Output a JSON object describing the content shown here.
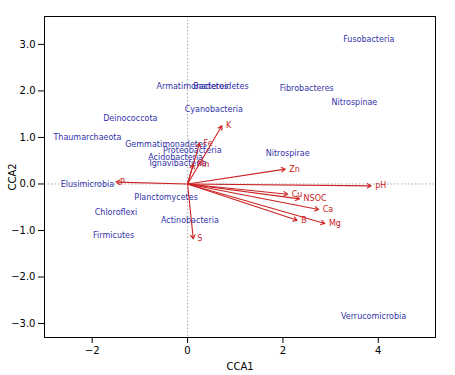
{
  "chart_data": {
    "type": "biplot",
    "xlabel": "CCA1",
    "ylabel": "CCA2",
    "xlim": [
      -3.0,
      5.2
    ],
    "ylim": [
      -3.3,
      3.6
    ],
    "xticks": [
      -2,
      0,
      2,
      4
    ],
    "yticks": [
      -3,
      -2,
      -1,
      0,
      1,
      2,
      3
    ],
    "grid": false,
    "background_color": "#ffffff",
    "reference_lines": {
      "x": [
        0
      ],
      "y": [
        0
      ]
    },
    "species": {
      "color": "#3333AA",
      "points": [
        {
          "label": "Fusobacteria",
          "x": 3.8,
          "y": 3.1
        },
        {
          "label": "Fibrobacteres",
          "x": 2.5,
          "y": 2.05
        },
        {
          "label": "Nitrospinae",
          "x": 3.5,
          "y": 1.75
        },
        {
          "label": "Cyanobacteria",
          "x": 0.55,
          "y": 1.6
        },
        {
          "label": "Bacteroidetes",
          "x": 0.7,
          "y": 2.1
        },
        {
          "label": "Armatimonadetes",
          "x": 0.1,
          "y": 2.1
        },
        {
          "label": "Deinococcota",
          "x": -1.2,
          "y": 1.4
        },
        {
          "label": "Thaumarchaeota",
          "x": -2.1,
          "y": 1.0
        },
        {
          "label": "Nitrospirae",
          "x": 2.1,
          "y": 0.65
        },
        {
          "label": "Gemmatimonadetes",
          "x": -0.45,
          "y": 0.85
        },
        {
          "label": "Proteobacteria",
          "x": 0.1,
          "y": 0.72
        },
        {
          "label": "Acidobacteria",
          "x": -0.25,
          "y": 0.57
        },
        {
          "label": "Ignavibacteria",
          "x": -0.2,
          "y": 0.45
        },
        {
          "label": "Elusimicrobia",
          "x": -2.1,
          "y": 0.0
        },
        {
          "label": "Planctomycetes",
          "x": -0.45,
          "y": -0.28
        },
        {
          "label": "Chloroflexi",
          "x": -1.5,
          "y": -0.62
        },
        {
          "label": "Actinobacteria",
          "x": 0.05,
          "y": -0.78
        },
        {
          "label": "Firmicutes",
          "x": -1.55,
          "y": -1.1
        },
        {
          "label": "Verrucomicrobia",
          "x": 3.9,
          "y": -2.85
        }
      ]
    },
    "vectors": {
      "color": "#CC2222",
      "origin": [
        0,
        0
      ],
      "arrows": [
        {
          "label": "K",
          "x": 0.72,
          "y": 1.25
        },
        {
          "label": "Fe",
          "x": 0.25,
          "y": 0.88
        },
        {
          "label": "Mn",
          "x": 0.12,
          "y": 0.42
        },
        {
          "label": "Zn",
          "x": 2.05,
          "y": 0.32
        },
        {
          "label": "P",
          "x": -1.5,
          "y": 0.04
        },
        {
          "label": "pH",
          "x": 3.85,
          "y": -0.04
        },
        {
          "label": "Cu",
          "x": 2.1,
          "y": -0.22
        },
        {
          "label": "NSOC",
          "x": 2.35,
          "y": -0.32
        },
        {
          "label": "Ca",
          "x": 2.75,
          "y": -0.55
        },
        {
          "label": "B",
          "x": 2.3,
          "y": -0.78
        },
        {
          "label": "Mg",
          "x": 2.88,
          "y": -0.85
        },
        {
          "label": "S",
          "x": 0.12,
          "y": -1.18
        }
      ]
    }
  }
}
